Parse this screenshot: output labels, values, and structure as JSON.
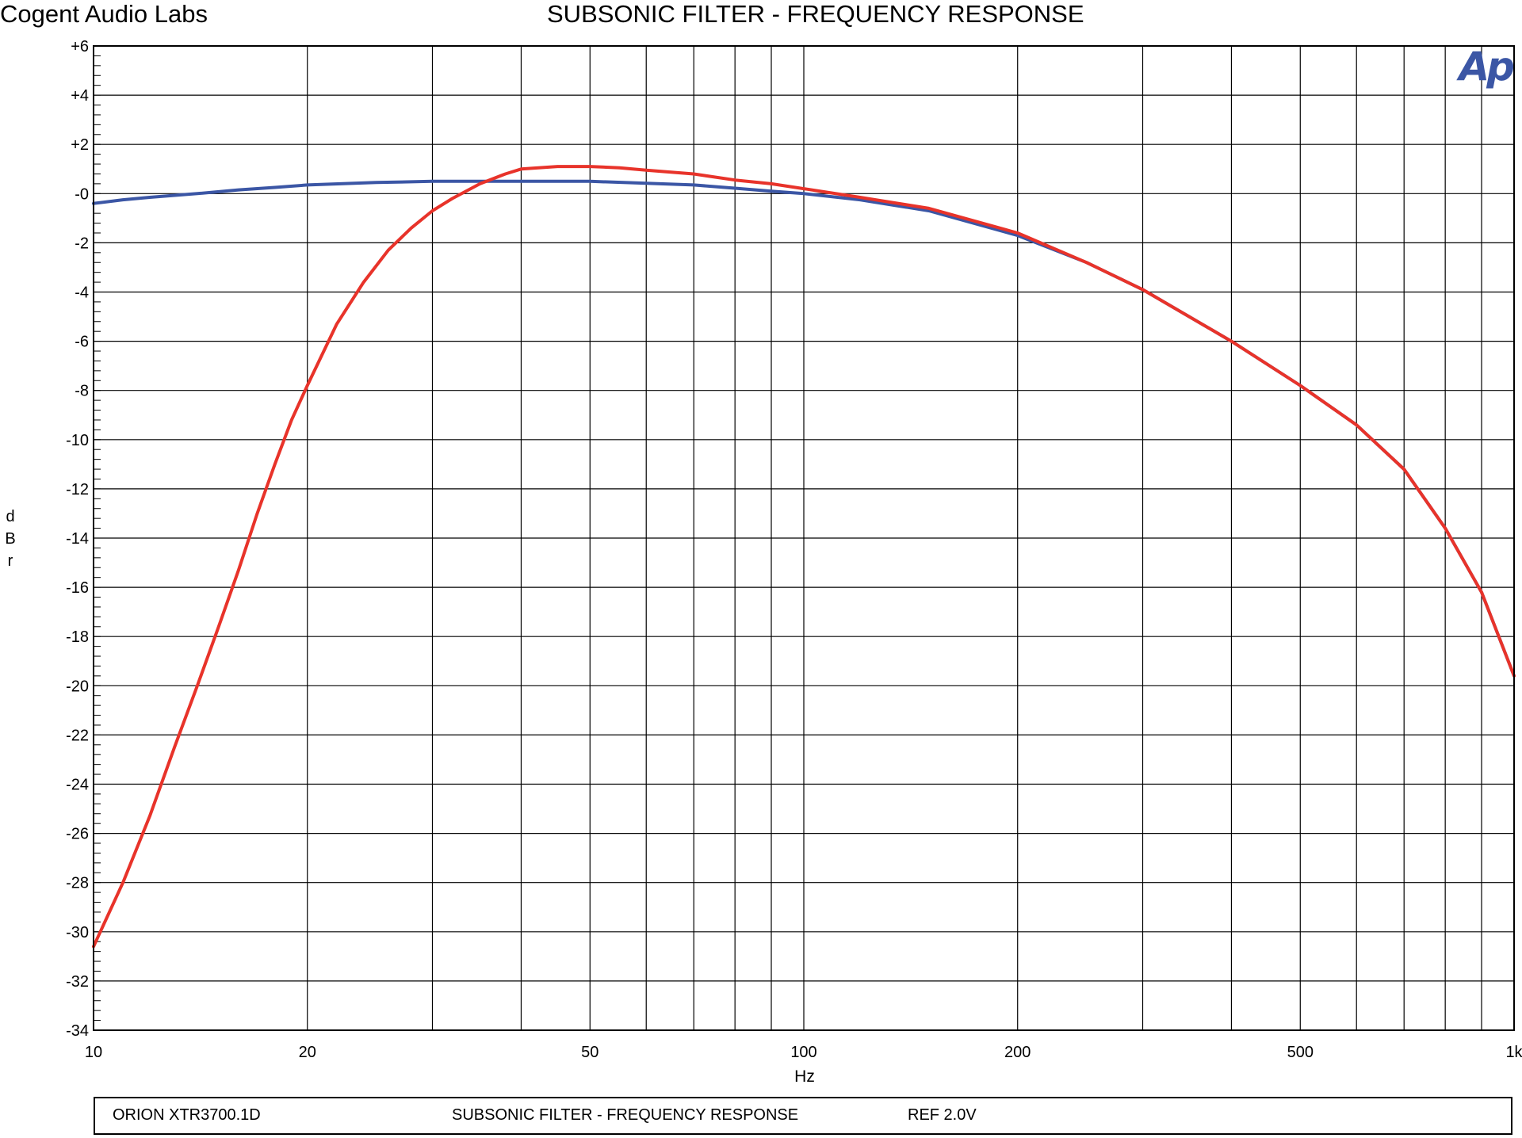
{
  "header": {
    "brand": "Cogent Audio Labs",
    "title": "SUBSONIC FILTER  -  FREQUENCY RESPONSE"
  },
  "logo": {
    "text": "Ap",
    "color": "#3b56a5"
  },
  "footer": {
    "model": "ORION  XTR3700.1D",
    "description": "SUBSONIC FILTER  -  FREQUENCY RESPONSE",
    "reference": "REF 2.0V"
  },
  "chart_data": {
    "type": "line",
    "title": "SUBSONIC FILTER  -  FREQUENCY RESPONSE",
    "xlabel": "Hz",
    "ylabel": "dBr",
    "x_scale": "log",
    "xlim": [
      10,
      1000
    ],
    "ylim": [
      -34,
      6
    ],
    "grid": true,
    "x_ticks": [
      10,
      20,
      50,
      100,
      200,
      500,
      1000
    ],
    "x_tick_labels": [
      "10",
      "20",
      "50",
      "100",
      "200",
      "500",
      "1k"
    ],
    "y_ticks": [
      6,
      4,
      2,
      0,
      -2,
      -4,
      -6,
      -8,
      -10,
      -12,
      -14,
      -16,
      -18,
      -20,
      -22,
      -24,
      -26,
      -28,
      -30,
      -32,
      -34
    ],
    "y_tick_labels": [
      "+6",
      "+4",
      "+2",
      "-0",
      "-2",
      "-4",
      "-6",
      "-8",
      "-10",
      "-12",
      "-14",
      "-16",
      "-18",
      "-20",
      "-22",
      "-24",
      "-26",
      "-28",
      "-30",
      "-32",
      "-34"
    ],
    "series": [
      {
        "color": "#3b56a5",
        "x": [
          10,
          11,
          12,
          14,
          16,
          18,
          20,
          25,
          30,
          40,
          50,
          60,
          70,
          80,
          90,
          100,
          120,
          150,
          200,
          250,
          300,
          400,
          500,
          600,
          700,
          800,
          900,
          1000
        ],
        "y": [
          -0.4,
          -0.25,
          -0.15,
          0.0,
          0.15,
          0.25,
          0.35,
          0.45,
          0.5,
          0.5,
          0.5,
          0.42,
          0.35,
          0.22,
          0.1,
          0.0,
          -0.25,
          -0.7,
          -1.7,
          -2.8,
          -3.9,
          -6.0,
          -7.8,
          -9.4,
          -11.2,
          -13.6,
          -16.2,
          -19.6
        ]
      },
      {
        "color": "#e8332a",
        "x": [
          10,
          11,
          12,
          13,
          14,
          15,
          16,
          17,
          18,
          19,
          20,
          22,
          24,
          26,
          28,
          30,
          32,
          35,
          38,
          40,
          45,
          50,
          55,
          60,
          70,
          80,
          90,
          100,
          120,
          150,
          200,
          250,
          300,
          400,
          500,
          600,
          700,
          800,
          900,
          1000
        ],
        "y": [
          -30.6,
          -28.0,
          -25.3,
          -22.5,
          -20.0,
          -17.6,
          -15.3,
          -13.0,
          -11.0,
          -9.2,
          -7.8,
          -5.3,
          -3.6,
          -2.3,
          -1.4,
          -0.7,
          -0.2,
          0.4,
          0.8,
          1.0,
          1.1,
          1.1,
          1.05,
          0.95,
          0.8,
          0.55,
          0.4,
          0.2,
          -0.15,
          -0.6,
          -1.6,
          -2.8,
          -3.9,
          -6.0,
          -7.8,
          -9.4,
          -11.2,
          -13.6,
          -16.2,
          -19.6
        ]
      }
    ]
  }
}
